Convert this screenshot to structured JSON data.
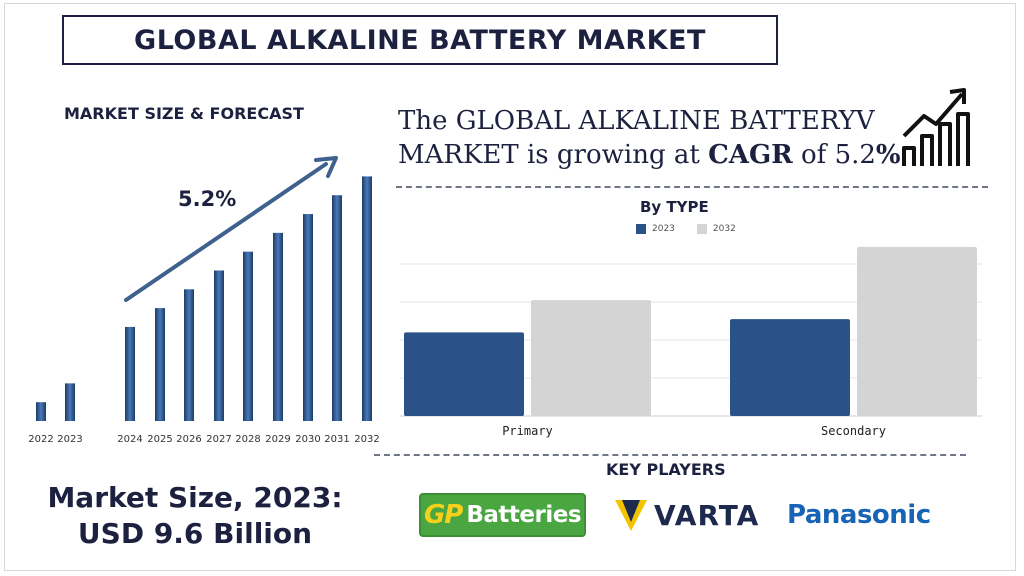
{
  "header": {
    "title": "GLOBAL ALKALINE BATTERY MARKET"
  },
  "left_section": {
    "label": "MARKET SIZE & FORECAST",
    "cagr_label": "5.2%"
  },
  "headline": {
    "line1": "The GLOBAL  ALKALINE BATTERYV",
    "line2_prefix": "MARKET is growing at ",
    "line2_bold": "CAGR",
    "line2_mid": " of 5.2",
    "line2_suffix": "%"
  },
  "right_section": {
    "label": "By TYPE"
  },
  "market_size": {
    "line1": "Market Size, 2023:",
    "line2": "USD 9.6 Billion"
  },
  "key_players": {
    "label": "KEY PLAYERS",
    "gp": {
      "mark": "GP",
      "text": "Batteries"
    },
    "varta": "VARTA",
    "panasonic": "Panasonic"
  },
  "colors": {
    "navy": "#1d2140",
    "bar_blue": "#2b5288",
    "bar_grey": "#d4d4d4",
    "accent_blue": "#3f618e"
  },
  "icons": [
    "growth-chart-icon",
    "varta-v-icon"
  ],
  "chart_data": [
    {
      "type": "bar",
      "categories": [
        "2022",
        "2023",
        "2024",
        "2025",
        "2026",
        "2027",
        "2028",
        "2029",
        "2030",
        "2031",
        "2032"
      ],
      "values": [
        1.0,
        2.0,
        5.0,
        6.0,
        7.0,
        8.0,
        9.0,
        10.0,
        11.0,
        12.0,
        13.0
      ],
      "title": "",
      "xlabel": "",
      "ylabel": "",
      "ylim": [
        0,
        13.5
      ],
      "grid": false,
      "annotation": "5.2%",
      "trend_arrow": true
    },
    {
      "type": "bar",
      "categories": [
        "Primary",
        "Secondary"
      ],
      "series": [
        {
          "name": "2023",
          "values": [
            44,
            51
          ]
        },
        {
          "name": "2032",
          "values": [
            61,
            89
          ]
        }
      ],
      "title": "By TYPE",
      "xlabel": "",
      "ylabel": "",
      "ylim": [
        0,
        100
      ],
      "grid": true,
      "legend": "top-center"
    }
  ]
}
